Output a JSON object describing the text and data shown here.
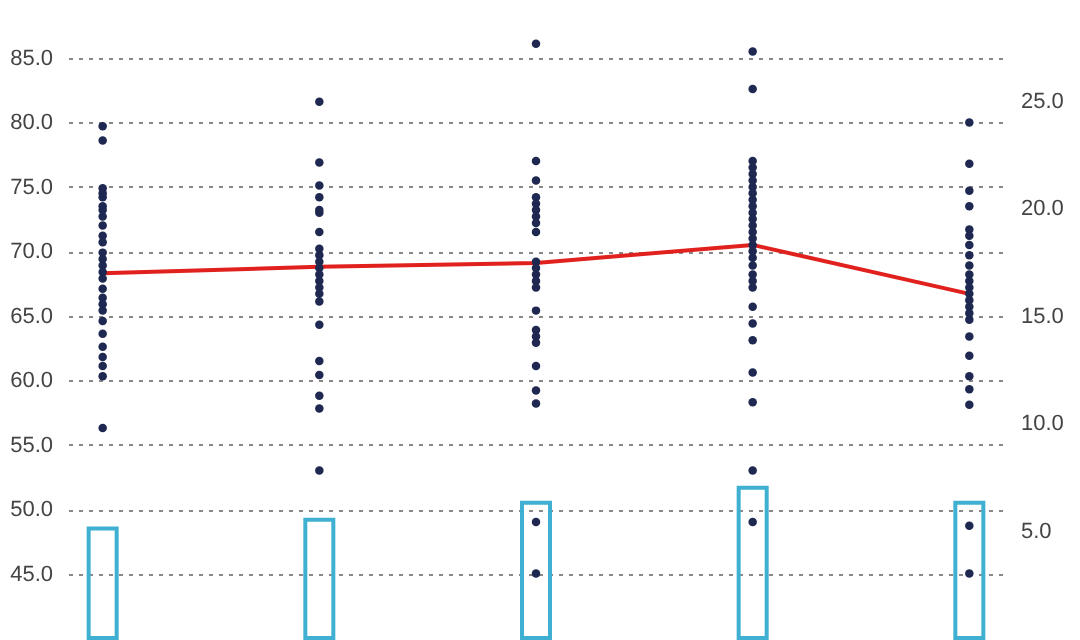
{
  "chart_data": {
    "type": "bar",
    "categories": [
      null,
      null,
      null,
      null,
      null
    ],
    "ylim": [
      40,
      89.5
    ],
    "yticks": [
      {
        "value": 45,
        "label": "45.0"
      },
      {
        "value": 50,
        "label": "50.0"
      },
      {
        "value": 55,
        "label": "55.0"
      },
      {
        "value": 60,
        "label": "60.0"
      },
      {
        "value": 65,
        "label": "65.0"
      },
      {
        "value": 70,
        "label": "70.0"
      },
      {
        "value": 75,
        "label": "75.0"
      },
      {
        "value": 80,
        "label": "80.0"
      },
      {
        "value": 85,
        "label": "85.0"
      }
    ],
    "y2lim": [
      0,
      29.7
    ],
    "y2ticks": [
      {
        "value": 5,
        "label": "5.0"
      },
      {
        "value": 10,
        "label": "10.0"
      },
      {
        "value": 15,
        "label": "15.0"
      },
      {
        "value": 20,
        "label": "20.0"
      },
      {
        "value": 25,
        "label": "25.0"
      }
    ],
    "grid": "y",
    "tick_labels": "y",
    "series": [
      {
        "axis": "y2",
        "color": "#3fb0d2",
        "values": [
          5.1,
          5.5,
          6.3,
          7.0,
          6.3
        ]
      },
      {
        "type": "line",
        "color": "#e0211d",
        "marker": "none",
        "values": [
          68.3,
          68.8,
          69.1,
          70.5,
          66.7
        ]
      },
      {
        "type": "scatter",
        "color": "#1e2850",
        "marker": "circle",
        "values": [
          79.7,
          81.6,
          86.1,
          85.5,
          80.0
        ]
      },
      {
        "type": "scatter",
        "color": "#1e2850",
        "marker": "circle",
        "values": [
          78.6,
          76.9,
          77.0,
          82.6,
          76.8
        ]
      },
      {
        "type": "scatter",
        "color": "#1e2850",
        "marker": "circle",
        "values": [
          74.9,
          75.1,
          75.5,
          77.0,
          74.7
        ]
      },
      {
        "type": "scatter",
        "color": "#1e2850",
        "marker": "circle",
        "values": [
          74.5,
          74.2,
          74.2,
          76.5,
          73.5
        ]
      },
      {
        "type": "scatter",
        "color": "#1e2850",
        "marker": "circle",
        "values": [
          74.2,
          73.2,
          73.7,
          76.0,
          71.7
        ]
      },
      {
        "type": "scatter",
        "color": "#1e2850",
        "marker": "circle",
        "values": [
          73.5,
          73.0,
          73.2,
          75.5,
          71.2
        ]
      },
      {
        "type": "scatter",
        "color": "#1e2850",
        "marker": "circle",
        "values": [
          73.2,
          71.5,
          72.7,
          75.0,
          70.5
        ]
      },
      {
        "type": "scatter",
        "color": "#1e2850",
        "marker": "circle",
        "values": [
          72.7,
          70.2,
          72.2,
          74.5,
          69.7
        ]
      },
      {
        "type": "scatter",
        "color": "#1e2850",
        "marker": "circle",
        "values": [
          72.0,
          69.7,
          71.5,
          74.0,
          68.9
        ]
      },
      {
        "type": "scatter",
        "color": "#1e2850",
        "marker": "circle",
        "values": [
          71.2,
          69.2,
          69.2,
          73.5,
          68.2
        ]
      },
      {
        "type": "scatter",
        "color": "#1e2850",
        "marker": "circle",
        "values": [
          70.7,
          68.7,
          68.7,
          73.0,
          67.7
        ]
      },
      {
        "type": "scatter",
        "color": "#1e2850",
        "marker": "circle",
        "values": [
          69.9,
          68.2,
          68.2,
          72.5,
          67.2
        ]
      },
      {
        "type": "scatter",
        "color": "#1e2850",
        "marker": "circle",
        "values": [
          69.4,
          67.7,
          67.7,
          72.0,
          66.7
        ]
      },
      {
        "type": "scatter",
        "color": "#1e2850",
        "marker": "circle",
        "values": [
          68.9,
          67.2,
          67.2,
          71.5,
          66.2
        ]
      },
      {
        "type": "scatter",
        "color": "#1e2850",
        "marker": "circle",
        "values": [
          68.4,
          66.7,
          65.4,
          71.0,
          65.7
        ]
      },
      {
        "type": "scatter",
        "color": "#1e2850",
        "marker": "circle",
        "values": [
          67.9,
          66.1,
          63.9,
          70.5,
          65.2
        ]
      },
      {
        "type": "scatter",
        "color": "#1e2850",
        "marker": "circle",
        "values": [
          67.1,
          64.3,
          63.4,
          70.0,
          64.7
        ]
      },
      {
        "type": "scatter",
        "color": "#1e2850",
        "marker": "circle",
        "values": [
          66.4,
          61.5,
          62.9,
          69.5,
          63.4
        ]
      },
      {
        "type": "scatter",
        "color": "#1e2850",
        "marker": "circle",
        "values": [
          65.9,
          60.4,
          61.1,
          68.9,
          61.9
        ]
      },
      {
        "type": "scatter",
        "color": "#1e2850",
        "marker": "circle",
        "values": [
          65.4,
          58.8,
          59.2,
          68.2,
          60.3
        ]
      },
      {
        "type": "scatter",
        "color": "#1e2850",
        "marker": "circle",
        "values": [
          64.6,
          57.8,
          58.2,
          67.7,
          59.3
        ]
      },
      {
        "type": "scatter",
        "color": "#1e2850",
        "marker": "circle",
        "values": [
          63.6,
          53.0,
          49.0,
          67.2,
          58.1
        ]
      },
      {
        "type": "scatter",
        "color": "#1e2850",
        "marker": "circle",
        "values": [
          62.6,
          null,
          45.0,
          65.7,
          48.7
        ]
      },
      {
        "type": "scatter",
        "color": "#1e2850",
        "marker": "circle",
        "values": [
          61.8,
          null,
          null,
          64.4,
          45.0
        ]
      },
      {
        "type": "scatter",
        "color": "#1e2850",
        "marker": "circle",
        "values": [
          61.1,
          null,
          null,
          63.1,
          null
        ]
      },
      {
        "type": "scatter",
        "color": "#1e2850",
        "marker": "circle",
        "values": [
          60.3,
          null,
          null,
          60.6,
          null
        ]
      },
      {
        "type": "scatter",
        "color": "#1e2850",
        "marker": "circle",
        "values": [
          56.3,
          null,
          null,
          58.3,
          null
        ]
      },
      {
        "type": "scatter",
        "color": "#1e2850",
        "marker": "circle",
        "values": [
          null,
          null,
          null,
          53.0,
          null
        ]
      },
      {
        "type": "scatter",
        "color": "#1e2850",
        "marker": "circle",
        "values": [
          null,
          null,
          null,
          49.0,
          null
        ]
      }
    ]
  }
}
